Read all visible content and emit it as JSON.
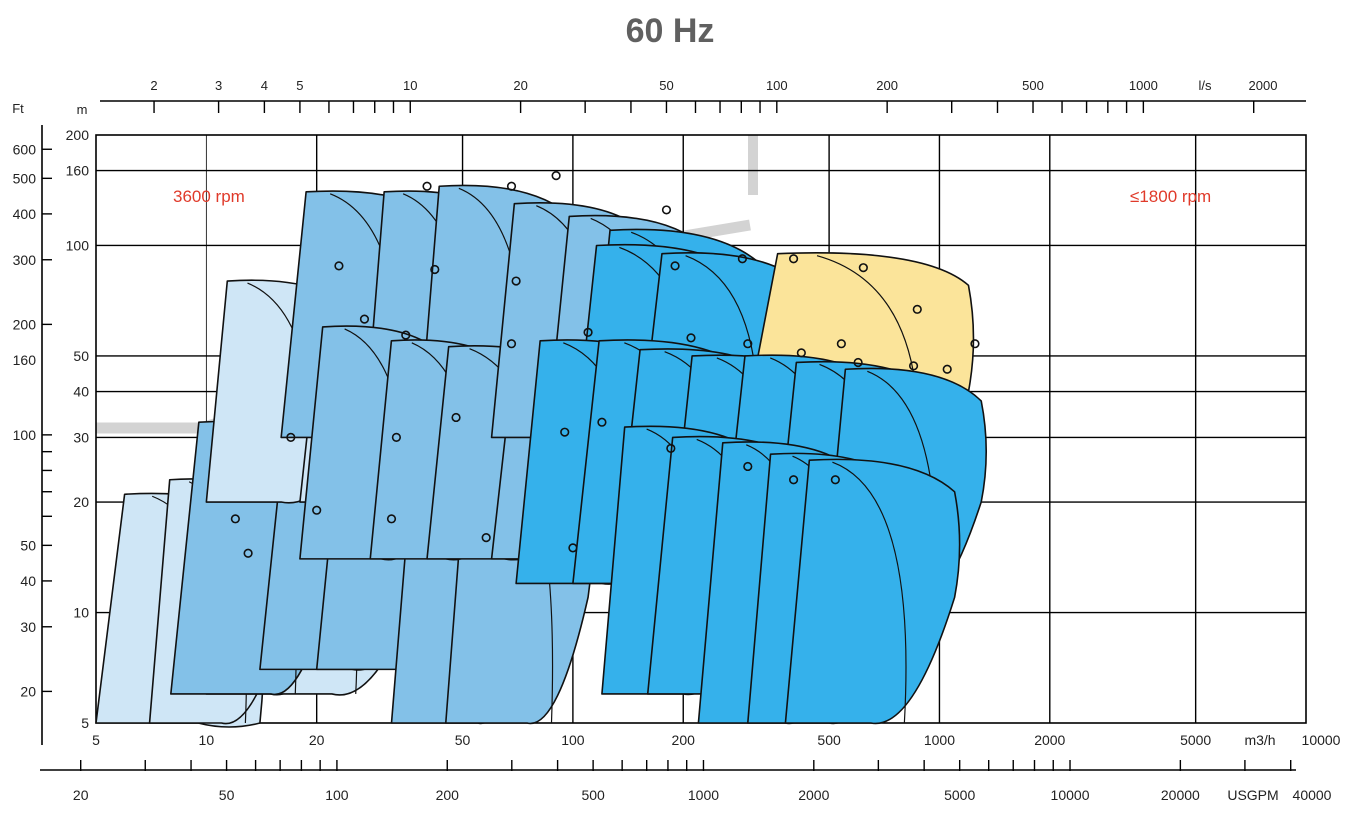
{
  "chart_data": {
    "type": "area",
    "title": "60 Hz",
    "scale": "log-log",
    "grid": true,
    "x_axis": {
      "unit": "m3/h",
      "range": [
        5,
        10000
      ],
      "ticks": [
        "5",
        "10",
        "20",
        "50",
        "100",
        "200",
        "500",
        "1000",
        "2000",
        "5000"
      ],
      "unit_label": "m3/h",
      "end_label": "10000"
    },
    "x_top_axis": {
      "unit": "l/s",
      "ticks": [
        "2",
        "3",
        "4",
        "5",
        "10",
        "20",
        "50",
        "100",
        "200",
        "500",
        "1000"
      ],
      "unit_label": "l/s",
      "end_label": "2000"
    },
    "x_bottom_axis": {
      "unit": "USGPM",
      "ticks": [
        "20",
        "50",
        "100",
        "200",
        "500",
        "1000",
        "2000",
        "5000",
        "10000",
        "20000"
      ],
      "unit_label": "USGPM",
      "end_label": "40000"
    },
    "y_axis": {
      "unit": "m",
      "unit_label": "m",
      "range": [
        5,
        200
      ],
      "ticks": [
        "5",
        "10",
        "20",
        "30",
        "40",
        "50",
        "100",
        "160",
        "200"
      ]
    },
    "y_left_axis": {
      "unit": "Ft",
      "unit_label": "Ft",
      "ticks": [
        "20",
        "30",
        "40",
        "50",
        "100",
        "160",
        "200",
        "300",
        "400",
        "500",
        "600"
      ]
    },
    "annotations": {
      "speed_2pole": "3600 rpm",
      "speed_4pole": "≤1800 rpm"
    },
    "colors": {
      "light": "#cfe6f6",
      "medium": "#83c1e8",
      "dark": "#35b1eb",
      "yellow": "#fbe49a",
      "gray_band": "#d3d3d3",
      "annotation": "#e03a2a"
    },
    "pump_ranges": [
      {
        "group": "light",
        "h_max": 21,
        "q_left": 5,
        "q_mid": 9.5,
        "q_right": 14,
        "h_low": 5,
        "h_bottom": 5
      },
      {
        "group": "light",
        "h_max": 23,
        "q_left": 7,
        "q_mid": 11,
        "q_right": 16,
        "h_low": 9,
        "h_bottom": 5
      },
      {
        "group": "light",
        "h_max": 22,
        "q_left": 10,
        "q_mid": 15,
        "q_right": 22,
        "h_low": 9,
        "h_bottom": 6
      },
      {
        "group": "light",
        "h_max": 22,
        "q_left": 15,
        "q_mid": 22,
        "q_right": 32,
        "h_low": 8,
        "h_bottom": 6
      },
      {
        "group": "medium",
        "h_max": 33,
        "q_left": 8,
        "q_mid": 15,
        "q_right": 22,
        "h_low": 12,
        "h_bottom": 6
      },
      {
        "group": "medium",
        "h_max": 33,
        "q_left": 14,
        "q_mid": 25,
        "q_right": 40,
        "h_low": 12,
        "h_bottom": 7
      },
      {
        "group": "medium",
        "h_max": 34,
        "q_left": 20,
        "q_mid": 35,
        "q_right": 55,
        "h_low": 12,
        "h_bottom": 7
      },
      {
        "group": "medium",
        "h_max": 32,
        "q_left": 32,
        "q_mid": 55,
        "q_right": 80,
        "h_low": 12,
        "h_bottom": 5
      },
      {
        "group": "medium",
        "h_max": 32,
        "q_left": 45,
        "q_mid": 75,
        "q_right": 110,
        "h_low": 11,
        "h_bottom": 5
      },
      {
        "group": "light",
        "h_max": 80,
        "q_left": 10,
        "q_mid": 16,
        "q_right": 26,
        "h_low": 30,
        "h_bottom": 20
      },
      {
        "group": "light",
        "h_max": 75,
        "q_left": 18,
        "q_mid": 30,
        "q_right": 48,
        "h_low": 30,
        "h_bottom": 20
      },
      {
        "group": "light",
        "h_max": 70,
        "q_left": 26,
        "q_mid": 42,
        "q_right": 65,
        "h_low": 30,
        "h_bottom": 20
      },
      {
        "group": "medium",
        "h_max": 140,
        "q_left": 16,
        "q_mid": 28,
        "q_right": 45,
        "h_low": 55,
        "h_bottom": 30
      },
      {
        "group": "medium",
        "h_max": 140,
        "q_left": 27,
        "q_mid": 42,
        "q_right": 70,
        "h_low": 50,
        "h_bottom": 30
      },
      {
        "group": "medium",
        "h_max": 145,
        "q_left": 38,
        "q_mid": 60,
        "q_right": 100,
        "h_low": 55,
        "h_bottom": 30
      },
      {
        "group": "medium",
        "h_max": 60,
        "q_left": 18,
        "q_mid": 30,
        "q_right": 45,
        "h_low": 20,
        "h_bottom": 14
      },
      {
        "group": "medium",
        "h_max": 55,
        "q_left": 28,
        "q_mid": 45,
        "q_right": 70,
        "h_low": 20,
        "h_bottom": 14
      },
      {
        "group": "medium",
        "h_max": 53,
        "q_left": 40,
        "q_mid": 65,
        "q_right": 110,
        "h_low": 20,
        "h_bottom": 14
      },
      {
        "group": "medium",
        "h_max": 50,
        "q_left": 60,
        "q_mid": 100,
        "q_right": 160,
        "h_low": 20,
        "h_bottom": 14
      },
      {
        "group": "medium",
        "h_max": 130,
        "q_left": 60,
        "q_mid": 100,
        "q_right": 160,
        "h_low": 45,
        "h_bottom": 30
      },
      {
        "group": "medium",
        "h_max": 120,
        "q_left": 85,
        "q_mid": 140,
        "q_right": 230,
        "h_low": 45,
        "h_bottom": 30
      },
      {
        "group": "dark",
        "h_max": 110,
        "q_left": 110,
        "q_mid": 180,
        "q_right": 320,
        "h_low": 40,
        "h_bottom": 28
      },
      {
        "group": "dark",
        "h_max": 100,
        "q_left": 100,
        "q_mid": 170,
        "q_right": 300,
        "h_low": 35,
        "h_bottom": 25
      },
      {
        "group": "dark",
        "h_max": 95,
        "q_left": 150,
        "q_mid": 260,
        "q_right": 430,
        "h_low": 35,
        "h_bottom": 25
      },
      {
        "group": "yellow",
        "h_max": 95,
        "q_left": 280,
        "q_mid": 700,
        "q_right": 1200,
        "h_low": 40,
        "h_bottom": 25
      },
      {
        "group": "dark",
        "h_max": 55,
        "q_left": 70,
        "q_mid": 120,
        "q_right": 200,
        "h_low": 20,
        "h_bottom": 12
      },
      {
        "group": "dark",
        "h_max": 55,
        "q_left": 100,
        "q_mid": 180,
        "q_right": 300,
        "h_low": 20,
        "h_bottom": 12
      },
      {
        "group": "dark",
        "h_max": 52,
        "q_left": 130,
        "q_mid": 230,
        "q_right": 380,
        "h_low": 20,
        "h_bottom": 12
      },
      {
        "group": "dark",
        "h_max": 50,
        "q_left": 180,
        "q_mid": 320,
        "q_right": 520,
        "h_low": 20,
        "h_bottom": 11
      },
      {
        "group": "dark",
        "h_max": 50,
        "q_left": 250,
        "q_mid": 450,
        "q_right": 700,
        "h_low": 20,
        "h_bottom": 11
      },
      {
        "group": "dark",
        "h_max": 48,
        "q_left": 350,
        "q_mid": 600,
        "q_right": 1000,
        "h_low": 20,
        "h_bottom": 11
      },
      {
        "group": "dark",
        "h_max": 46,
        "q_left": 480,
        "q_mid": 800,
        "q_right": 1300,
        "h_low": 20,
        "h_bottom": 10
      },
      {
        "group": "dark",
        "h_max": 32,
        "q_left": 120,
        "q_mid": 200,
        "q_right": 330,
        "h_low": 12,
        "h_bottom": 6
      },
      {
        "group": "dark",
        "h_max": 30,
        "q_left": 160,
        "q_mid": 280,
        "q_right": 450,
        "h_low": 12,
        "h_bottom": 6
      },
      {
        "group": "dark",
        "h_max": 29,
        "q_left": 220,
        "q_mid": 380,
        "q_right": 600,
        "h_low": 12,
        "h_bottom": 5
      },
      {
        "group": "dark",
        "h_max": 27,
        "q_left": 300,
        "q_mid": 500,
        "q_right": 800,
        "h_low": 11,
        "h_bottom": 5
      },
      {
        "group": "dark",
        "h_max": 26,
        "q_left": 380,
        "q_mid": 650,
        "q_right": 1100,
        "h_low": 11,
        "h_bottom": 5
      }
    ],
    "duty_points": [
      {
        "q": 12,
        "h": 18
      },
      {
        "q": 13,
        "h": 14.5
      },
      {
        "q": 20,
        "h": 19
      },
      {
        "q": 32,
        "h": 18
      },
      {
        "q": 58,
        "h": 16
      },
      {
        "q": 100,
        "h": 15
      },
      {
        "q": 17,
        "h": 30
      },
      {
        "q": 33,
        "h": 30
      },
      {
        "q": 48,
        "h": 34
      },
      {
        "q": 95,
        "h": 31
      },
      {
        "q": 120,
        "h": 33
      },
      {
        "q": 185,
        "h": 28
      },
      {
        "q": 300,
        "h": 25
      },
      {
        "q": 400,
        "h": 23
      },
      {
        "q": 520,
        "h": 23
      },
      {
        "q": 27,
        "h": 63
      },
      {
        "q": 35,
        "h": 57
      },
      {
        "q": 68,
        "h": 54
      },
      {
        "q": 110,
        "h": 58
      },
      {
        "q": 210,
        "h": 56
      },
      {
        "q": 300,
        "h": 54
      },
      {
        "q": 420,
        "h": 51
      },
      {
        "q": 600,
        "h": 48
      },
      {
        "q": 850,
        "h": 47
      },
      {
        "q": 1050,
        "h": 46
      },
      {
        "q": 23,
        "h": 88
      },
      {
        "q": 42,
        "h": 86
      },
      {
        "q": 70,
        "h": 80
      },
      {
        "q": 40,
        "h": 145
      },
      {
        "q": 68,
        "h": 145
      },
      {
        "q": 90,
        "h": 155
      },
      {
        "q": 180,
        "h": 125
      },
      {
        "q": 190,
        "h": 88
      },
      {
        "q": 290,
        "h": 92
      },
      {
        "q": 400,
        "h": 92
      },
      {
        "q": 620,
        "h": 87
      },
      {
        "q": 870,
        "h": 67
      },
      {
        "q": 1250,
        "h": 54
      },
      {
        "q": 540,
        "h": 54
      }
    ]
  }
}
